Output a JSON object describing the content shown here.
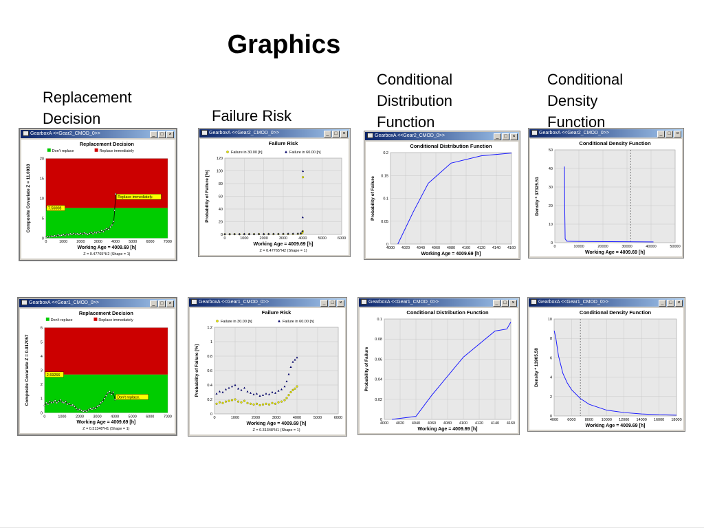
{
  "slide": {
    "title": "Graphics",
    "headings": {
      "replacement": "Replacement\nDecision",
      "risk": "Failure Risk",
      "cdf": "Conditional\nDistribution\nFunction",
      "density": "Conditional\nDensity\nFunction"
    }
  },
  "window_buttons": [
    "_",
    "□",
    "×"
  ],
  "colors": {
    "red": "#cc0000",
    "green": "#00cc00",
    "blue": "#1a1aff",
    "navy": "#000066",
    "yellow": "#e6e600",
    "titlebar": "#0a246a"
  },
  "chart_data": [
    {
      "id": "rd1",
      "type": "area",
      "window_title": "GearboxA <<Gear2_CMOD_0>>",
      "title": "Replacement Decision",
      "legend": [
        "Don't replace",
        "Replace immediately"
      ],
      "xlabel": "Working Age = 4009.69 [h]",
      "ylabel": "Composite Covariate Z = 11.0933",
      "note": "Z = 0.47765*H2     (Shape = 1)",
      "xlim": [
        0,
        7000
      ],
      "ylim": [
        0,
        20
      ],
      "xticks": [
        0,
        1000,
        2000,
        3000,
        4000,
        5000,
        6000,
        7000
      ],
      "yticks": [
        0,
        5,
        10,
        15,
        20
      ],
      "threshold": 7.56008,
      "threshold_label": "7.56008",
      "callout": "Replace immediately.",
      "series": [
        {
          "x": [
            0,
            100,
            200,
            300,
            400,
            500,
            600,
            700,
            800,
            900,
            1000,
            1100,
            1200,
            1300,
            1400,
            1500,
            1600,
            1700,
            1800,
            1900,
            2000,
            2100,
            2200,
            2300,
            2400,
            2500,
            2600,
            2700,
            2800,
            2900,
            3000,
            3100,
            3200,
            3300,
            3400,
            3500,
            3600,
            3700,
            3800,
            3900,
            3950,
            4009.69
          ],
          "values": [
            0.2,
            0.4,
            0.3,
            0.5,
            0.4,
            0.6,
            0.5,
            0.8,
            0.6,
            0.7,
            0.9,
            0.6,
            1.0,
            0.8,
            1.1,
            0.9,
            1.2,
            1.0,
            1.1,
            0.9,
            1.2,
            1.0,
            1.3,
            1.1,
            0.9,
            1.2,
            1.4,
            1.1,
            1.5,
            1.3,
            1.6,
            1.4,
            1.9,
            1.6,
            2.1,
            2.4,
            2.2,
            2.8,
            3.3,
            4.2,
            7.0,
            11.09
          ]
        }
      ]
    },
    {
      "id": "fr1",
      "type": "scatter",
      "window_title": "GearboxA <<Gear2_CMOD_0>>",
      "title": "Failure Risk",
      "xlabel": "Working Age = 4009.69 [h]",
      "ylabel": "Probability of Failure [%]",
      "note": "Z = 0.47765*H2     (Shape = 1)",
      "xlim": [
        0,
        6000
      ],
      "ylim": [
        0,
        120
      ],
      "xticks": [
        0,
        1000,
        2000,
        3000,
        4000,
        5000,
        6000
      ],
      "yticks": [
        0,
        20,
        40,
        60,
        80,
        100,
        120
      ],
      "series": [
        {
          "name": "Failure in 30.00 [h]",
          "x": [
            0,
            250,
            500,
            750,
            1000,
            1250,
            1500,
            1750,
            2000,
            2250,
            2500,
            2750,
            3000,
            3250,
            3500,
            3750,
            3900,
            3980,
            4000,
            4009.69
          ],
          "values": [
            0.3,
            0.3,
            0.4,
            0.3,
            0.4,
            0.4,
            0.4,
            0.5,
            0.4,
            0.5,
            0.5,
            0.5,
            0.6,
            0.6,
            0.7,
            0.8,
            1.0,
            2.5,
            5.0,
            90.0
          ]
        },
        {
          "name": "Failure in 60.00 [h]",
          "x": [
            0,
            250,
            500,
            750,
            1000,
            1250,
            1500,
            1750,
            2000,
            2250,
            2500,
            2750,
            3000,
            3250,
            3500,
            3750,
            3900,
            3980,
            4000,
            4009.69
          ],
          "values": [
            0.6,
            0.7,
            0.7,
            0.6,
            0.8,
            0.8,
            0.8,
            0.9,
            0.8,
            0.9,
            1.0,
            1.0,
            1.1,
            1.2,
            1.3,
            1.5,
            2.0,
            5.0,
            27.0,
            99.5
          ]
        }
      ]
    },
    {
      "id": "cdf1",
      "type": "line",
      "window_title": "GearboxA <<Gear2_CMOD_0>>",
      "title": "Conditional Distribution Function",
      "xlabel": "Working Age = 4009.69 [h]",
      "ylabel": "Probability of Failure",
      "xlim": [
        4000,
        4160
      ],
      "ylim": [
        0,
        0.2
      ],
      "xticks": [
        4000,
        4020,
        4040,
        4060,
        4080,
        4100,
        4120,
        4140,
        4160
      ],
      "yticks": [
        0,
        0.05,
        0.1,
        0.15,
        0.2
      ],
      "series": [
        {
          "x": [
            4009.69,
            4030,
            4050,
            4080,
            4120,
            4160
          ],
          "values": [
            0,
            0.07,
            0.133,
            0.177,
            0.193,
            0.199
          ]
        }
      ]
    },
    {
      "id": "cdd1",
      "type": "line",
      "window_title": "GearboxA <<Gear2_CMOD_0>>",
      "title": "Conditional Density Function",
      "xlabel": "Working Age = 4009.69 [h]",
      "ylabel": "Density * 37325.51",
      "xlim": [
        0,
        50000
      ],
      "ylim": [
        0,
        50
      ],
      "xticks": [
        0,
        10000,
        20000,
        30000,
        40000,
        50000
      ],
      "yticks": [
        0,
        10,
        20,
        30,
        40,
        50
      ],
      "marker_x": 31500,
      "series": [
        {
          "x": [
            4009.69,
            4100,
            4300,
            5000,
            8000,
            15000,
            30000,
            40000,
            41000
          ],
          "values": [
            41.0,
            20.0,
            2.0,
            0.8,
            0.7,
            0.6,
            0.5,
            0.4,
            0.4
          ]
        }
      ]
    },
    {
      "id": "rd2",
      "type": "area",
      "window_title": "GearboxA <<Gear1_CMOD_0>>",
      "title": "Replacement Decision",
      "legend": [
        "Don't replace",
        "Replace immediately"
      ],
      "xlabel": "Working Age = 4009.69 [h]",
      "ylabel": "Composite Covariate Z = 0.917057",
      "note": "Z = 0.31348*H1     (Shape = 1)",
      "xlim": [
        0,
        7000
      ],
      "ylim": [
        0,
        6
      ],
      "xticks": [
        0,
        1000,
        2000,
        3000,
        4000,
        5000,
        6000,
        7000
      ],
      "yticks": [
        0,
        1,
        2,
        3,
        4,
        5,
        6
      ],
      "threshold": 2.69266,
      "threshold_label": "2.69266",
      "callout": "Don't replace.",
      "series": [
        {
          "x": [
            0,
            100,
            200,
            300,
            400,
            500,
            600,
            700,
            800,
            900,
            1000,
            1100,
            1200,
            1300,
            1400,
            1500,
            1600,
            1700,
            1800,
            1900,
            2000,
            2100,
            2200,
            2300,
            2400,
            2500,
            2600,
            2700,
            2800,
            2900,
            3000,
            3100,
            3200,
            3300,
            3400,
            3500,
            3600,
            3700,
            3800,
            3900,
            4009.69
          ],
          "values": [
            0.5,
            0.7,
            0.6,
            0.8,
            0.7,
            0.75,
            0.85,
            0.7,
            0.8,
            0.9,
            0.75,
            0.7,
            0.8,
            0.6,
            0.65,
            0.5,
            0.55,
            0.45,
            0.3,
            0.2,
            0.25,
            0.15,
            0.1,
            0.15,
            0.1,
            0.2,
            0.3,
            0.25,
            0.35,
            0.3,
            0.45,
            0.5,
            0.7,
            0.8,
            1.0,
            1.2,
            1.4,
            1.5,
            1.3,
            1.45,
            0.92
          ]
        }
      ]
    },
    {
      "id": "fr2",
      "type": "scatter",
      "window_title": "GearboxA <<Gear1_CMOD_0>>",
      "title": "Failure Risk",
      "xlabel": "Working Age = 4009.69 [h]",
      "ylabel": "Probability of Failure [%]",
      "note": "Z = 0.31348*H1     (Shape = 1)",
      "xlim": [
        0,
        6000
      ],
      "ylim": [
        0,
        1.2
      ],
      "xticks": [
        0,
        1000,
        2000,
        3000,
        4000,
        5000,
        6000
      ],
      "yticks": [
        0,
        0.2,
        0.4,
        0.6,
        0.8,
        1,
        1.2
      ],
      "series": [
        {
          "name": "Failure in 30.00 [h]",
          "x": [
            100,
            250,
            400,
            550,
            700,
            850,
            1000,
            1150,
            1300,
            1450,
            1600,
            1750,
            1900,
            2050,
            2200,
            2350,
            2500,
            2650,
            2800,
            2950,
            3100,
            3250,
            3400,
            3500,
            3600,
            3700,
            3800,
            3900,
            4000
          ],
          "values": [
            0.14,
            0.16,
            0.15,
            0.17,
            0.18,
            0.19,
            0.2,
            0.17,
            0.16,
            0.18,
            0.15,
            0.14,
            0.13,
            0.14,
            0.12,
            0.13,
            0.14,
            0.13,
            0.15,
            0.14,
            0.16,
            0.17,
            0.19,
            0.22,
            0.26,
            0.3,
            0.33,
            0.35,
            0.38
          ]
        },
        {
          "name": "Failure in 60.00 [h]",
          "x": [
            100,
            250,
            400,
            550,
            700,
            850,
            1000,
            1150,
            1300,
            1450,
            1600,
            1750,
            1900,
            2050,
            2200,
            2350,
            2500,
            2650,
            2800,
            2950,
            3100,
            3250,
            3400,
            3500,
            3600,
            3700,
            3800,
            3900,
            4000
          ],
          "values": [
            0.28,
            0.31,
            0.3,
            0.34,
            0.36,
            0.38,
            0.4,
            0.35,
            0.33,
            0.36,
            0.31,
            0.29,
            0.27,
            0.28,
            0.25,
            0.26,
            0.28,
            0.27,
            0.3,
            0.29,
            0.32,
            0.34,
            0.38,
            0.45,
            0.55,
            0.65,
            0.72,
            0.75,
            0.78
          ]
        }
      ]
    },
    {
      "id": "cdf2",
      "type": "line",
      "window_title": "GearboxA <<Gear1_CMOD_0>>",
      "title": "Conditional Distribution Function",
      "xlabel": "Working Age = 4009.69 [h]",
      "ylabel": "Probability of Failure",
      "xlim": [
        4000,
        4160
      ],
      "ylim": [
        0,
        0.1
      ],
      "xticks": [
        4000,
        4020,
        4040,
        4060,
        4080,
        4100,
        4120,
        4140,
        4160
      ],
      "yticks": [
        0,
        0.02,
        0.04,
        0.06,
        0.08,
        0.1
      ],
      "series": [
        {
          "x": [
            4009.69,
            4040,
            4060,
            4100,
            4140,
            4155,
            4160
          ],
          "values": [
            0,
            0.003,
            0.024,
            0.062,
            0.088,
            0.09,
            0.097
          ]
        }
      ]
    },
    {
      "id": "cdd2",
      "type": "line",
      "window_title": "GearboxA <<Gear1_CMOD_0>>",
      "title": "Conditional Density Function",
      "xlabel": "Working Age = 4009.69 [h]",
      "ylabel": "Density * 13905.58",
      "xlim": [
        4000,
        18000
      ],
      "ylim": [
        0,
        10
      ],
      "xticks": [
        4000,
        6000,
        8000,
        10000,
        12000,
        14000,
        16000,
        18000
      ],
      "yticks": [
        0,
        2,
        4,
        6,
        8,
        10
      ],
      "marker_x": 7000,
      "series": [
        {
          "x": [
            4009.69,
            4200,
            4500,
            5000,
            5500,
            6000,
            7000,
            8000,
            9000,
            10000,
            12000,
            14000,
            16000,
            18000
          ],
          "values": [
            8.8,
            8.0,
            6.2,
            4.4,
            3.4,
            2.7,
            1.8,
            1.2,
            0.9,
            0.6,
            0.35,
            0.2,
            0.12,
            0.08
          ]
        }
      ]
    }
  ]
}
